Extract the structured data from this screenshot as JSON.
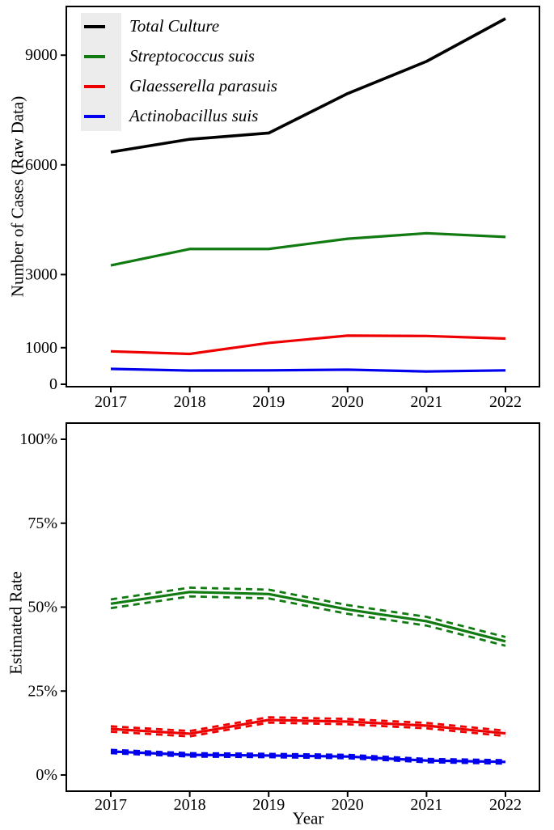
{
  "chart_data": [
    {
      "type": "line",
      "title": "",
      "xlabel": "",
      "ylabel": "Number of Cases (Raw Data)",
      "x": [
        2017,
        2018,
        2019,
        2020,
        2021,
        2022
      ],
      "yticks": [
        {
          "value": 0,
          "label": "0"
        },
        {
          "value": 1000,
          "label": "1000"
        },
        {
          "value": 3000,
          "label": "3000"
        },
        {
          "value": 6000,
          "label": "6000"
        },
        {
          "value": 9000,
          "label": "9000"
        }
      ],
      "ylim": [
        0,
        10300
      ],
      "grid": false,
      "legend_position": "top-left",
      "series": [
        {
          "name": "Total Culture",
          "color": "#000000",
          "values": [
            6350,
            6700,
            6870,
            7950,
            8830,
            10000
          ]
        },
        {
          "name": "Streptococcus suis",
          "color": "#117a11",
          "values": [
            3250,
            3700,
            3700,
            3980,
            4130,
            4030
          ]
        },
        {
          "name": "Glaesserella parasuis",
          "color": "#ee0000",
          "values": [
            900,
            830,
            1130,
            1330,
            1320,
            1250
          ]
        },
        {
          "name": "Actinobacillus suis",
          "color": "#0000ee",
          "values": [
            420,
            375,
            380,
            400,
            350,
            380
          ]
        }
      ]
    },
    {
      "type": "line",
      "title": "",
      "xlabel": "Year",
      "ylabel": "Estimated Rate",
      "x": [
        2017,
        2018,
        2019,
        2020,
        2021,
        2022
      ],
      "yticks": [
        {
          "value": 0,
          "label": "0%"
        },
        {
          "value": 25,
          "label": "25%"
        },
        {
          "value": 50,
          "label": "50%"
        },
        {
          "value": 75,
          "label": "75%"
        },
        {
          "value": 100,
          "label": "100%"
        }
      ],
      "ylim": [
        0,
        104
      ],
      "grid": false,
      "legend_position": "none",
      "ci_style": "dashed",
      "series": [
        {
          "name": "Streptococcus suis",
          "color": "#117a11",
          "values": [
            51.0,
            54.5,
            53.9,
            49.3,
            45.8,
            39.8
          ],
          "ci": 1.3
        },
        {
          "name": "Glaesserella parasuis",
          "color": "#ee0000",
          "values": [
            13.7,
            12.3,
            16.4,
            15.9,
            14.7,
            12.4
          ],
          "ci": 0.8
        },
        {
          "name": "Actinobacillus suis",
          "color": "#0000ee",
          "values": [
            7.0,
            6.0,
            5.8,
            5.5,
            4.3,
            3.9
          ],
          "ci": 0.5
        }
      ]
    }
  ]
}
